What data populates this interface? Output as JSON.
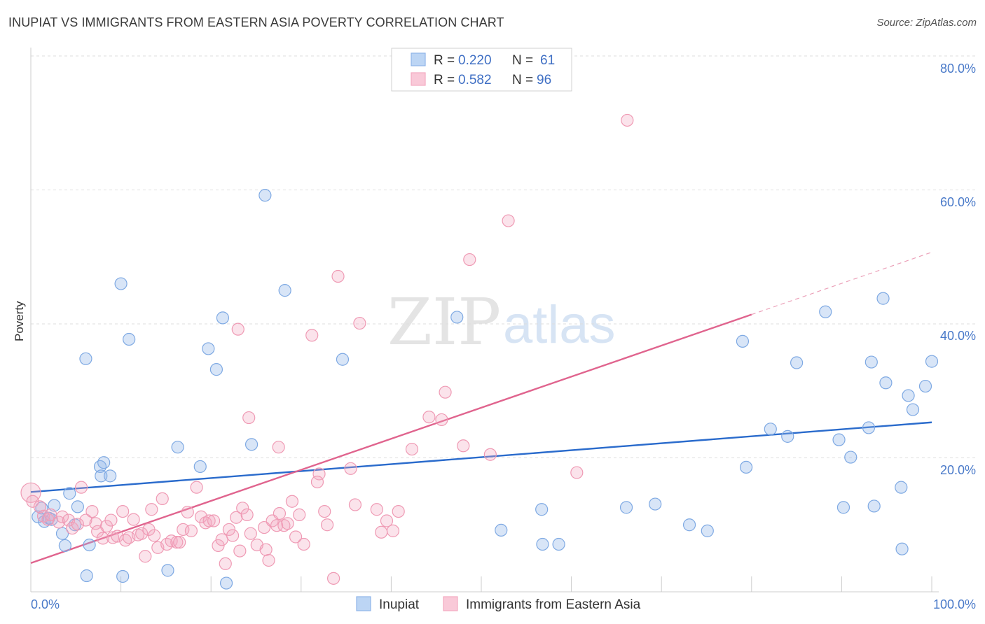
{
  "title": "INUPIAT VS IMMIGRANTS FROM EASTERN ASIA POVERTY CORRELATION CHART",
  "source": "Source: ZipAtlas.com",
  "watermark": {
    "zip": "ZIP",
    "atlas": "atlas"
  },
  "chart_data": {
    "type": "scatter",
    "title": "INUPIAT VS IMMIGRANTS FROM EASTERN ASIA POVERTY CORRELATION CHART",
    "ylabel": "Poverty",
    "xlabel": "",
    "xlim": [
      0,
      100
    ],
    "ylim": [
      0,
      80
    ],
    "x_tick_labels": [
      "0.0%",
      "100.0%"
    ],
    "y_ticks": [
      20,
      40,
      60,
      80
    ],
    "y_tick_labels": [
      "20.0%",
      "40.0%",
      "60.0%",
      "80.0%"
    ],
    "legend": [
      {
        "name": "Inupiat",
        "r_label": "R =",
        "r": "0.220",
        "n_label": "N =",
        "n": "61",
        "color": "#8fb5e8",
        "line": "#2a6bcc"
      },
      {
        "name": "Immigrants from Eastern Asia",
        "r_label": "R =",
        "r": "0.582",
        "n_label": "N =",
        "n": "96",
        "color": "#f4a9c0",
        "line": "#e0648e"
      }
    ],
    "series": [
      {
        "name": "Inupiat",
        "trend": {
          "x0": 0,
          "y0": 14.9,
          "x1": 100,
          "y1": 25.3
        },
        "points": [
          [
            0.8,
            11.2
          ],
          [
            1.2,
            12.5
          ],
          [
            1.5,
            10.5
          ],
          [
            2.0,
            11.0
          ],
          [
            2.3,
            10.8
          ],
          [
            2.6,
            12.9
          ],
          [
            3.5,
            8.7
          ],
          [
            3.8,
            6.9
          ],
          [
            4.3,
            14.7
          ],
          [
            4.9,
            10.0
          ],
          [
            5.2,
            12.7
          ],
          [
            6.1,
            34.8
          ],
          [
            6.2,
            2.4
          ],
          [
            6.5,
            7.0
          ],
          [
            7.7,
            18.7
          ],
          [
            7.8,
            17.3
          ],
          [
            8.1,
            19.3
          ],
          [
            8.8,
            17.3
          ],
          [
            10.0,
            46.0
          ],
          [
            10.2,
            2.3
          ],
          [
            10.9,
            37.7
          ],
          [
            15.2,
            3.2
          ],
          [
            16.3,
            21.6
          ],
          [
            18.8,
            18.7
          ],
          [
            19.7,
            36.3
          ],
          [
            20.6,
            33.2
          ],
          [
            21.3,
            40.9
          ],
          [
            21.7,
            1.3
          ],
          [
            24.5,
            22.0
          ],
          [
            26.0,
            59.2
          ],
          [
            28.2,
            45.0
          ],
          [
            34.6,
            34.7
          ],
          [
            47.3,
            41.0
          ],
          [
            52.2,
            9.2
          ],
          [
            56.7,
            12.3
          ],
          [
            56.8,
            7.1
          ],
          [
            58.6,
            7.1
          ],
          [
            66.1,
            12.6
          ],
          [
            69.3,
            13.1
          ],
          [
            73.1,
            10.0
          ],
          [
            75.1,
            9.1
          ],
          [
            79.0,
            37.4
          ],
          [
            79.4,
            18.6
          ],
          [
            82.1,
            24.3
          ],
          [
            84.0,
            23.2
          ],
          [
            85.0,
            34.2
          ],
          [
            88.2,
            41.8
          ],
          [
            89.7,
            22.7
          ],
          [
            90.2,
            12.6
          ],
          [
            91.0,
            20.1
          ],
          [
            93.0,
            24.5
          ],
          [
            93.3,
            34.3
          ],
          [
            93.6,
            12.8
          ],
          [
            94.6,
            43.8
          ],
          [
            94.9,
            31.2
          ],
          [
            96.6,
            15.6
          ],
          [
            96.7,
            6.4
          ],
          [
            97.4,
            29.3
          ],
          [
            97.9,
            27.2
          ],
          [
            99.3,
            30.7
          ],
          [
            100.0,
            34.4
          ]
        ]
      },
      {
        "name": "Immigrants from Eastern Asia",
        "trend": {
          "x0": 0,
          "y0": 4.3,
          "x1": 80,
          "y1": 41.4,
          "dash_x1": 100,
          "dash_y1": 50.7
        },
        "points": [
          [
            0.0,
            14.8
          ],
          [
            0.2,
            13.5
          ],
          [
            1.0,
            12.7
          ],
          [
            1.4,
            11.3
          ],
          [
            1.9,
            10.8
          ],
          [
            2.2,
            11.5
          ],
          [
            3.1,
            10.4
          ],
          [
            3.5,
            11.2
          ],
          [
            4.2,
            10.7
          ],
          [
            4.6,
            9.5
          ],
          [
            5.2,
            10.1
          ],
          [
            5.6,
            15.6
          ],
          [
            6.1,
            10.7
          ],
          [
            6.8,
            12.0
          ],
          [
            7.2,
            10.2
          ],
          [
            7.4,
            9.0
          ],
          [
            8.0,
            8.0
          ],
          [
            8.4,
            9.8
          ],
          [
            8.9,
            10.7
          ],
          [
            9.1,
            8.1
          ],
          [
            9.6,
            8.3
          ],
          [
            10.2,
            12.0
          ],
          [
            10.5,
            7.7
          ],
          [
            10.9,
            8.1
          ],
          [
            11.4,
            10.8
          ],
          [
            11.9,
            8.5
          ],
          [
            12.3,
            8.7
          ],
          [
            12.7,
            5.3
          ],
          [
            13.1,
            9.3
          ],
          [
            13.4,
            12.3
          ],
          [
            13.7,
            8.4
          ],
          [
            14.1,
            6.6
          ],
          [
            14.6,
            13.9
          ],
          [
            15.1,
            7.1
          ],
          [
            15.6,
            7.6
          ],
          [
            16.2,
            7.4
          ],
          [
            16.5,
            7.4
          ],
          [
            16.9,
            9.3
          ],
          [
            17.4,
            11.9
          ],
          [
            17.8,
            9.1
          ],
          [
            18.4,
            15.6
          ],
          [
            18.9,
            11.2
          ],
          [
            19.4,
            10.3
          ],
          [
            19.8,
            10.6
          ],
          [
            20.3,
            10.6
          ],
          [
            20.8,
            6.9
          ],
          [
            21.2,
            7.8
          ],
          [
            21.6,
            4.2
          ],
          [
            22.0,
            9.3
          ],
          [
            22.4,
            8.4
          ],
          [
            22.8,
            11.1
          ],
          [
            23.2,
            6.1
          ],
          [
            23.5,
            12.5
          ],
          [
            24.0,
            11.5
          ],
          [
            24.4,
            8.7
          ],
          [
            25.1,
            7.0
          ],
          [
            25.9,
            9.6
          ],
          [
            26.1,
            6.3
          ],
          [
            26.4,
            4.7
          ],
          [
            26.8,
            10.6
          ],
          [
            27.3,
            9.9
          ],
          [
            27.6,
            11.7
          ],
          [
            28.1,
            9.9
          ],
          [
            28.5,
            10.2
          ],
          [
            29.0,
            13.5
          ],
          [
            29.4,
            8.2
          ],
          [
            29.8,
            11.5
          ],
          [
            30.3,
            7.1
          ],
          [
            31.2,
            38.3
          ],
          [
            32.0,
            17.6
          ],
          [
            32.6,
            12.0
          ],
          [
            32.9,
            10.0
          ],
          [
            33.6,
            2.0
          ],
          [
            34.1,
            47.1
          ],
          [
            35.5,
            18.4
          ],
          [
            36.5,
            40.1
          ],
          [
            38.4,
            12.3
          ],
          [
            38.9,
            8.9
          ],
          [
            39.5,
            10.6
          ],
          [
            40.8,
            12.0
          ],
          [
            42.3,
            21.3
          ],
          [
            44.2,
            26.1
          ],
          [
            45.6,
            25.7
          ],
          [
            46.0,
            29.8
          ],
          [
            48.0,
            21.8
          ],
          [
            48.7,
            49.6
          ],
          [
            51.0,
            20.5
          ],
          [
            53.0,
            55.4
          ],
          [
            60.6,
            17.8
          ],
          [
            66.2,
            70.4
          ],
          [
            36.0,
            13.0
          ],
          [
            40.2,
            9.1
          ],
          [
            23.0,
            39.2
          ],
          [
            27.5,
            21.6
          ],
          [
            24.2,
            26.0
          ],
          [
            31.8,
            16.4
          ]
        ]
      }
    ]
  }
}
